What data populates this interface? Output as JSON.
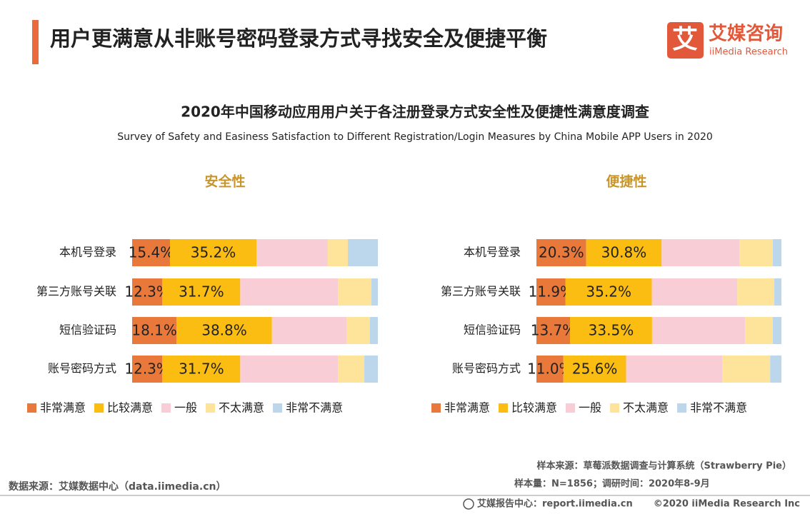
{
  "header": {
    "title": "用户更满意从非账号密码登录方式寻找安全及便捷平衡"
  },
  "logo": {
    "mark": "艾",
    "name": "艾媒咨询",
    "name_en": "iiMedia Research"
  },
  "chart_header": {
    "title": "2020年中国移动应用用户关于各注册登录方式安全性及便捷性满意度调查",
    "subtitle": "Survey of Safety and Easiness Satisfaction to Different Registration/Login Measures by China Mobile APP Users in 2020"
  },
  "chart_data": [
    {
      "type": "bar",
      "orientation": "horizontal",
      "stacked": true,
      "title": "安全性",
      "categories": [
        "本机号登录",
        "第三方账号关联",
        "短信验证码",
        "账号密码方式"
      ],
      "xlim": [
        0,
        100
      ],
      "series": [
        {
          "name": "非常满意",
          "color": "#e8793a",
          "values": [
            15.4,
            12.3,
            18.1,
            12.3
          ],
          "value_labels": [
            "15.4%",
            "12.3%",
            "18.1%",
            "12.3%"
          ]
        },
        {
          "name": "比较满意",
          "color": "#fbbd11",
          "values": [
            35.2,
            31.7,
            38.8,
            31.7
          ],
          "value_labels": [
            "35.2%",
            "31.7%",
            "38.8%",
            "31.7%"
          ]
        },
        {
          "name": "一般",
          "color": "#f9cdd6",
          "values": [
            28.9,
            39.8,
            30.4,
            39.8
          ]
        },
        {
          "name": "不太满意",
          "color": "#fde49a",
          "values": [
            8.3,
            13.6,
            9.5,
            10.7
          ]
        },
        {
          "name": "非常不满意",
          "color": "#bcd6ec",
          "values": [
            12.2,
            2.6,
            3.2,
            5.5
          ]
        }
      ]
    },
    {
      "type": "bar",
      "orientation": "horizontal",
      "stacked": true,
      "title": "便捷性",
      "categories": [
        "本机号登录",
        "第三方账号关联",
        "短信验证码",
        "账号密码方式"
      ],
      "xlim": [
        0,
        100
      ],
      "series": [
        {
          "name": "非常满意",
          "color": "#e8793a",
          "values": [
            20.3,
            11.9,
            13.7,
            11.0
          ],
          "value_labels": [
            "20.3%",
            "11.9%",
            "13.7%",
            "11.0%"
          ]
        },
        {
          "name": "比较满意",
          "color": "#fbbd11",
          "values": [
            30.8,
            35.2,
            33.5,
            25.6
          ],
          "value_labels": [
            "30.8%",
            "35.2%",
            "33.5%",
            "25.6%"
          ]
        },
        {
          "name": "一般",
          "color": "#f9cdd6",
          "values": [
            31.7,
            34.9,
            38.0,
            39.3
          ]
        },
        {
          "name": "不太满意",
          "color": "#fde49a",
          "values": [
            13.7,
            15.1,
            11.3,
            19.5
          ]
        },
        {
          "name": "非常不满意",
          "color": "#bcd6ec",
          "values": [
            3.5,
            2.9,
            3.5,
            4.6
          ]
        }
      ]
    }
  ],
  "footer": {
    "source": "数据来源：艾媒数据中心（data.iimedia.cn）",
    "sample_source": "样本来源：草莓派数据调查与计算系统（Strawberry Pie）",
    "sample_size": "样本量：N=1856；调研时间：2020年8-9月",
    "report_center": "艾媒报告中心：report.iimedia.cn",
    "copyright": "©2020  iiMedia Research  Inc"
  }
}
